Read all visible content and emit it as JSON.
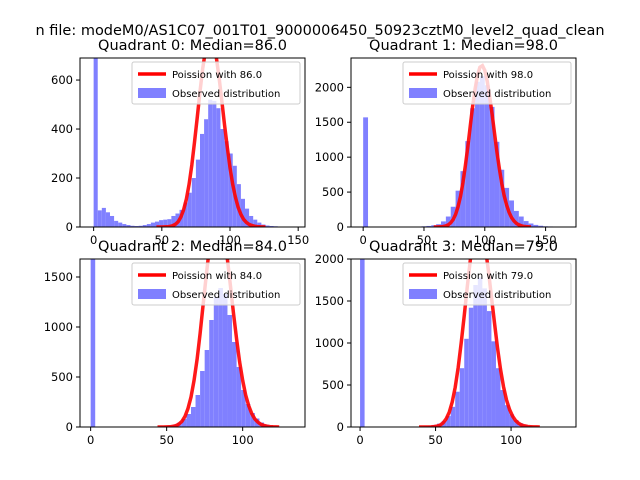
{
  "suptitle": "n file: modeM0/AS1C07_001T01_9000006450_50923cztM0_level2_quad_clean",
  "chart_data": [
    {
      "type": "bar",
      "title": "Quadrant 0: Median=86.0",
      "xlim": [
        -10,
        155
      ],
      "ylim": [
        0,
        690
      ],
      "xticks": [
        0,
        50,
        100,
        150
      ],
      "yticks": [
        0,
        200,
        400,
        600
      ],
      "bin_width": 3,
      "bins": [
        [
          0,
          690
        ],
        [
          3,
          68
        ],
        [
          6,
          78
        ],
        [
          9,
          60
        ],
        [
          12,
          45
        ],
        [
          15,
          25
        ],
        [
          18,
          18
        ],
        [
          21,
          12
        ],
        [
          24,
          8
        ],
        [
          27,
          5
        ],
        [
          30,
          4
        ],
        [
          33,
          5
        ],
        [
          36,
          8
        ],
        [
          39,
          12
        ],
        [
          42,
          18
        ],
        [
          45,
          22
        ],
        [
          48,
          28
        ],
        [
          51,
          30
        ],
        [
          54,
          32
        ],
        [
          57,
          45
        ],
        [
          60,
          55
        ],
        [
          63,
          70
        ],
        [
          66,
          100
        ],
        [
          69,
          140
        ],
        [
          72,
          200
        ],
        [
          75,
          275
        ],
        [
          78,
          380
        ],
        [
          81,
          440
        ],
        [
          84,
          520
        ],
        [
          87,
          515
        ],
        [
          90,
          485
        ],
        [
          93,
          400
        ],
        [
          96,
          350
        ],
        [
          99,
          300
        ],
        [
          102,
          250
        ],
        [
          105,
          175
        ],
        [
          108,
          115
        ],
        [
          111,
          75
        ],
        [
          114,
          45
        ],
        [
          117,
          30
        ],
        [
          120,
          18
        ],
        [
          123,
          10
        ],
        [
          126,
          6
        ],
        [
          129,
          4
        ],
        [
          132,
          3
        ],
        [
          135,
          2
        ],
        [
          138,
          1
        ],
        [
          141,
          1
        ],
        [
          144,
          1
        ]
      ],
      "poisson_mean": 86.0,
      "poisson_scale": 18000,
      "legend": [
        "Poission with 86.0",
        "Observed distribution"
      ]
    },
    {
      "type": "bar",
      "title": "Quadrant 1: Median=98.0",
      "xlim": [
        -10,
        175
      ],
      "ylim": [
        0,
        2420
      ],
      "xticks": [
        0,
        50,
        100,
        150
      ],
      "yticks": [
        0,
        500,
        1000,
        1500,
        2000
      ],
      "bin_width": 4,
      "bins": [
        [
          0,
          1570
        ],
        [
          4,
          5
        ],
        [
          8,
          5
        ],
        [
          12,
          5
        ],
        [
          16,
          5
        ],
        [
          20,
          5
        ],
        [
          24,
          5
        ],
        [
          28,
          5
        ],
        [
          32,
          5
        ],
        [
          36,
          5
        ],
        [
          40,
          5
        ],
        [
          44,
          5
        ],
        [
          48,
          10
        ],
        [
          52,
          15
        ],
        [
          56,
          25
        ],
        [
          60,
          40
        ],
        [
          64,
          80
        ],
        [
          68,
          150
        ],
        [
          72,
          290
        ],
        [
          76,
          520
        ],
        [
          80,
          800
        ],
        [
          84,
          1230
        ],
        [
          88,
          1700
        ],
        [
          92,
          2080
        ],
        [
          96,
          2160
        ],
        [
          100,
          2030
        ],
        [
          104,
          1720
        ],
        [
          108,
          1220
        ],
        [
          112,
          820
        ],
        [
          116,
          560
        ],
        [
          120,
          380
        ],
        [
          124,
          230
        ],
        [
          128,
          150
        ],
        [
          132,
          85
        ],
        [
          136,
          50
        ],
        [
          140,
          30
        ],
        [
          144,
          18
        ],
        [
          148,
          10
        ],
        [
          152,
          8
        ],
        [
          156,
          5
        ],
        [
          160,
          4
        ],
        [
          164,
          3
        ]
      ],
      "poisson_mean": 98.0,
      "poisson_scale": 57400,
      "legend": [
        "Poission with 98.0",
        "Observed distribution"
      ]
    },
    {
      "type": "bar",
      "title": "Quadrant 2: Median=84.0",
      "xlim": [
        -7,
        141
      ],
      "ylim": [
        0,
        1680
      ],
      "xticks": [
        0,
        50,
        100
      ],
      "yticks": [
        0,
        500,
        1000,
        1500
      ],
      "bin_width": 3,
      "bins": [
        [
          0,
          1680
        ],
        [
          3,
          5
        ],
        [
          6,
          5
        ],
        [
          9,
          5
        ],
        [
          12,
          5
        ],
        [
          15,
          5
        ],
        [
          18,
          5
        ],
        [
          21,
          5
        ],
        [
          24,
          5
        ],
        [
          27,
          5
        ],
        [
          30,
          5
        ],
        [
          33,
          5
        ],
        [
          36,
          5
        ],
        [
          39,
          5
        ],
        [
          42,
          5
        ],
        [
          45,
          8
        ],
        [
          48,
          10
        ],
        [
          51,
          15
        ],
        [
          54,
          25
        ],
        [
          57,
          45
        ],
        [
          60,
          80
        ],
        [
          63,
          130
        ],
        [
          66,
          200
        ],
        [
          69,
          320
        ],
        [
          72,
          560
        ],
        [
          75,
          770
        ],
        [
          78,
          1070
        ],
        [
          81,
          1300
        ],
        [
          84,
          1390
        ],
        [
          87,
          1330
        ],
        [
          90,
          1120
        ],
        [
          93,
          850
        ],
        [
          96,
          600
        ],
        [
          99,
          370
        ],
        [
          102,
          230
        ],
        [
          105,
          140
        ],
        [
          108,
          85
        ],
        [
          111,
          45
        ],
        [
          114,
          25
        ],
        [
          117,
          12
        ],
        [
          120,
          8
        ],
        [
          123,
          5
        ],
        [
          126,
          3
        ]
      ],
      "poisson_mean": 84.0,
      "poisson_scale": 49000,
      "legend": [
        "Poission with 84.0",
        "Observed distribution"
      ]
    },
    {
      "type": "bar",
      "title": "Quadrant 3: Median=79.0",
      "xlim": [
        -6,
        143
      ],
      "ylim": [
        0,
        2000
      ],
      "xticks": [
        0,
        50,
        100
      ],
      "yticks": [
        0,
        500,
        1000,
        1500,
        2000
      ],
      "bin_width": 3,
      "bins": [
        [
          0,
          2000
        ],
        [
          3,
          5
        ],
        [
          6,
          5
        ],
        [
          9,
          5
        ],
        [
          12,
          5
        ],
        [
          15,
          5
        ],
        [
          18,
          5
        ],
        [
          21,
          5
        ],
        [
          24,
          5
        ],
        [
          27,
          5
        ],
        [
          30,
          5
        ],
        [
          33,
          5
        ],
        [
          36,
          5
        ],
        [
          39,
          5
        ],
        [
          42,
          10
        ],
        [
          45,
          15
        ],
        [
          48,
          25
        ],
        [
          51,
          40
        ],
        [
          54,
          70
        ],
        [
          57,
          130
        ],
        [
          60,
          240
        ],
        [
          63,
          420
        ],
        [
          66,
          700
        ],
        [
          69,
          1050
        ],
        [
          72,
          1420
        ],
        [
          75,
          1690
        ],
        [
          78,
          1780
        ],
        [
          81,
          1650
        ],
        [
          84,
          1380
        ],
        [
          87,
          1020
        ],
        [
          90,
          700
        ],
        [
          93,
          440
        ],
        [
          96,
          260
        ],
        [
          99,
          150
        ],
        [
          102,
          80
        ],
        [
          105,
          45
        ],
        [
          108,
          25
        ],
        [
          111,
          12
        ],
        [
          114,
          8
        ],
        [
          117,
          5
        ],
        [
          120,
          3
        ]
      ],
      "poisson_mean": 79.0,
      "poisson_scale": 53800,
      "legend": [
        "Poission with 79.0",
        "Observed distribution"
      ]
    }
  ],
  "colors": {
    "bar": "#8080ff",
    "poisson": "#ff0000",
    "axis": "#000000"
  }
}
